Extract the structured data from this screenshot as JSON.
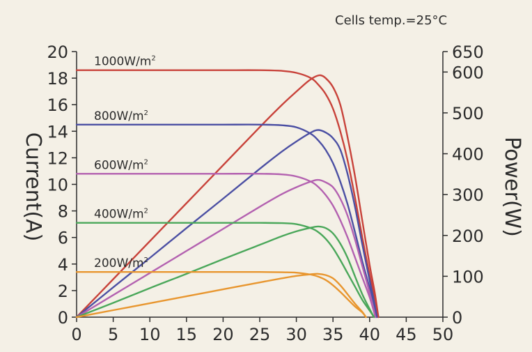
{
  "chart_data": {
    "type": "line",
    "annotation": "Cells temp.=25°C",
    "xlabel": "",
    "ylabel_left": "Current(A)",
    "ylabel_right": "Power(W)",
    "xlim": [
      0,
      50
    ],
    "ylim_left": [
      0,
      20
    ],
    "ylim_right": [
      0,
      650
    ],
    "x_ticks": [
      "0",
      "5",
      "10",
      "15",
      "20",
      "25",
      "30",
      "35",
      "40",
      "45",
      "50"
    ],
    "y_left_ticks": [
      "0",
      "2",
      "4",
      "6",
      "8",
      "10",
      "12",
      "14",
      "16",
      "18",
      "20"
    ],
    "y_right_ticks": [
      "0",
      "100",
      "200",
      "300",
      "400",
      "500",
      "600",
      "650"
    ],
    "grid": false,
    "series": [
      {
        "name": "1000W/m²",
        "irradiance_label": "1000W/m",
        "color": "#c8423a",
        "iv_curve": [
          [
            0,
            18.6
          ],
          [
            5,
            18.6
          ],
          [
            10,
            18.6
          ],
          [
            15,
            18.6
          ],
          [
            20,
            18.6
          ],
          [
            25,
            18.6
          ],
          [
            28,
            18.55
          ],
          [
            30,
            18.4
          ],
          [
            32,
            18.0
          ],
          [
            33,
            17.5
          ],
          [
            34,
            16.8
          ],
          [
            35,
            15.7
          ],
          [
            36,
            14.0
          ],
          [
            37,
            11.8
          ],
          [
            38,
            9.0
          ],
          [
            39,
            6.0
          ],
          [
            40,
            3.2
          ],
          [
            40.7,
            1.5
          ],
          [
            41.2,
            0
          ]
        ],
        "power_curve": [
          [
            0,
            0
          ],
          [
            5,
            93
          ],
          [
            10,
            186
          ],
          [
            15,
            279
          ],
          [
            20,
            372
          ],
          [
            25,
            465
          ],
          [
            28,
            519
          ],
          [
            30,
            552
          ],
          [
            31.5,
            576
          ],
          [
            32.5,
            588
          ],
          [
            33.3,
            592
          ],
          [
            34,
            585
          ],
          [
            35,
            563
          ],
          [
            36,
            520
          ],
          [
            37,
            440
          ],
          [
            38,
            345
          ],
          [
            39,
            236
          ],
          [
            40,
            128
          ],
          [
            40.7,
            60
          ],
          [
            41.2,
            0
          ]
        ]
      },
      {
        "name": "800W/m²",
        "irradiance_label": "800W/m",
        "color": "#4b4fa3",
        "iv_curve": [
          [
            0,
            14.5
          ],
          [
            5,
            14.5
          ],
          [
            10,
            14.5
          ],
          [
            15,
            14.5
          ],
          [
            20,
            14.5
          ],
          [
            25,
            14.5
          ],
          [
            28,
            14.45
          ],
          [
            30,
            14.3
          ],
          [
            32,
            13.8
          ],
          [
            33,
            13.3
          ],
          [
            34,
            12.6
          ],
          [
            35,
            11.6
          ],
          [
            36,
            10.2
          ],
          [
            37,
            8.5
          ],
          [
            38,
            6.4
          ],
          [
            39,
            4.2
          ],
          [
            40,
            2.2
          ],
          [
            40.5,
            1.2
          ],
          [
            41,
            0
          ]
        ],
        "power_curve": [
          [
            0,
            0
          ],
          [
            5,
            73
          ],
          [
            10,
            145
          ],
          [
            15,
            218
          ],
          [
            20,
            290
          ],
          [
            25,
            363
          ],
          [
            28,
            405
          ],
          [
            30,
            430
          ],
          [
            32,
            452
          ],
          [
            33,
            458
          ],
          [
            34,
            452
          ],
          [
            35,
            438
          ],
          [
            36,
            410
          ],
          [
            37,
            350
          ],
          [
            38,
            270
          ],
          [
            39,
            178
          ],
          [
            40,
            90
          ],
          [
            40.5,
            48
          ],
          [
            41,
            0
          ]
        ]
      },
      {
        "name": "600W/m²",
        "irradiance_label": "600W/m",
        "color": "#b361b0",
        "iv_curve": [
          [
            0,
            10.8
          ],
          [
            5,
            10.8
          ],
          [
            10,
            10.8
          ],
          [
            15,
            10.8
          ],
          [
            20,
            10.8
          ],
          [
            25,
            10.8
          ],
          [
            28,
            10.75
          ],
          [
            30,
            10.6
          ],
          [
            32,
            10.2
          ],
          [
            33,
            9.8
          ],
          [
            34,
            9.2
          ],
          [
            35,
            8.4
          ],
          [
            36,
            7.3
          ],
          [
            37,
            6.0
          ],
          [
            38,
            4.5
          ],
          [
            39,
            3.0
          ],
          [
            40,
            1.5
          ],
          [
            40.8,
            0
          ]
        ],
        "power_curve": [
          [
            0,
            0
          ],
          [
            5,
            54
          ],
          [
            10,
            108
          ],
          [
            15,
            162
          ],
          [
            20,
            216
          ],
          [
            25,
            270
          ],
          [
            28,
            301
          ],
          [
            30,
            318
          ],
          [
            32,
            332
          ],
          [
            33,
            336
          ],
          [
            34,
            330
          ],
          [
            35,
            318
          ],
          [
            36,
            290
          ],
          [
            37,
            248
          ],
          [
            38,
            190
          ],
          [
            39,
            125
          ],
          [
            40,
            60
          ],
          [
            40.8,
            0
          ]
        ]
      },
      {
        "name": "400W/m²",
        "irradiance_label": "400W/m",
        "color": "#4aa75a",
        "iv_curve": [
          [
            0,
            7.1
          ],
          [
            5,
            7.1
          ],
          [
            10,
            7.1
          ],
          [
            15,
            7.1
          ],
          [
            20,
            7.1
          ],
          [
            25,
            7.1
          ],
          [
            28,
            7.08
          ],
          [
            30,
            7.0
          ],
          [
            32,
            6.7
          ],
          [
            33,
            6.4
          ],
          [
            34,
            5.9
          ],
          [
            35,
            5.2
          ],
          [
            36,
            4.3
          ],
          [
            37,
            3.3
          ],
          [
            38,
            2.3
          ],
          [
            39,
            1.3
          ],
          [
            40,
            0.5
          ],
          [
            40.6,
            0
          ]
        ],
        "power_curve": [
          [
            0,
            0
          ],
          [
            5,
            35
          ],
          [
            10,
            71
          ],
          [
            15,
            106
          ],
          [
            20,
            142
          ],
          [
            25,
            177
          ],
          [
            28,
            198
          ],
          [
            30,
            210
          ],
          [
            32,
            219
          ],
          [
            33,
            222
          ],
          [
            34,
            218
          ],
          [
            35,
            205
          ],
          [
            36,
            180
          ],
          [
            37,
            145
          ],
          [
            38,
            100
          ],
          [
            39,
            56
          ],
          [
            40,
            20
          ],
          [
            40.6,
            0
          ]
        ]
      },
      {
        "name": "200W/m²",
        "irradiance_label": "200W/m",
        "color": "#e8962f",
        "iv_curve": [
          [
            0,
            3.4
          ],
          [
            5,
            3.4
          ],
          [
            10,
            3.4
          ],
          [
            15,
            3.4
          ],
          [
            20,
            3.4
          ],
          [
            25,
            3.4
          ],
          [
            28,
            3.38
          ],
          [
            30,
            3.35
          ],
          [
            32,
            3.2
          ],
          [
            33,
            3.05
          ],
          [
            34,
            2.8
          ],
          [
            35,
            2.4
          ],
          [
            36,
            1.9
          ],
          [
            37,
            1.35
          ],
          [
            38,
            0.8
          ],
          [
            39,
            0.35
          ],
          [
            39.5,
            0
          ]
        ],
        "power_curve": [
          [
            0,
            0
          ],
          [
            5,
            17
          ],
          [
            10,
            34
          ],
          [
            15,
            51
          ],
          [
            20,
            68
          ],
          [
            25,
            85
          ],
          [
            28,
            95
          ],
          [
            30,
            101
          ],
          [
            32,
            105
          ],
          [
            33,
            106
          ],
          [
            34,
            103
          ],
          [
            35,
            95
          ],
          [
            36,
            78
          ],
          [
            37,
            56
          ],
          [
            38,
            33
          ],
          [
            39,
            13
          ],
          [
            39.5,
            0
          ]
        ]
      }
    ]
  }
}
